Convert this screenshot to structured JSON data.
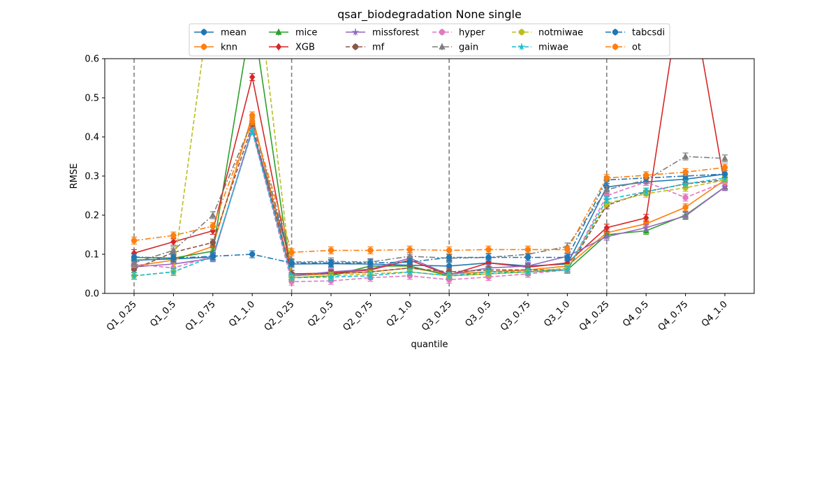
{
  "chart_data": {
    "type": "line",
    "title": "qsar_biodegradation None single",
    "xlabel": "quantile",
    "ylabel": "RMSE",
    "ylim": [
      0,
      0.6
    ],
    "yticks": [
      "0.0",
      "0.1",
      "0.2",
      "0.3",
      "0.4",
      "0.5",
      "0.6"
    ],
    "grid": false,
    "legend_position": "top-center",
    "vlines_at": [
      "Q1_0.25",
      "Q2_0.25",
      "Q3_0.25",
      "Q4_0.25"
    ],
    "categories": [
      "Q1_0.25",
      "Q1_0.5",
      "Q1_0.75",
      "Q1_1.0",
      "Q2_0.25",
      "Q2_0.5",
      "Q2_0.75",
      "Q2_1.0",
      "Q3_0.25",
      "Q3_0.5",
      "Q3_0.75",
      "Q3_1.0",
      "Q4_0.25",
      "Q4_0.5",
      "Q4_0.75",
      "Q4_1.0"
    ],
    "series": [
      {
        "name": "mean",
        "color": "#1f77b4",
        "dash": "solid",
        "marker": "circle",
        "values": [
          0.085,
          0.088,
          0.093,
          0.42,
          0.075,
          0.076,
          0.075,
          0.072,
          0.07,
          0.078,
          0.07,
          0.075,
          0.272,
          0.285,
          0.292,
          0.305
        ]
      },
      {
        "name": "knn",
        "color": "#ff7f0e",
        "dash": "solid",
        "marker": "circle",
        "values": [
          0.07,
          0.085,
          0.12,
          0.455,
          0.045,
          0.05,
          0.055,
          0.065,
          0.05,
          0.055,
          0.06,
          0.07,
          0.155,
          0.178,
          0.22,
          0.29
        ]
      },
      {
        "name": "mice",
        "color": "#2ca02c",
        "dash": "solid",
        "marker": "triangle",
        "values": [
          0.092,
          0.09,
          0.108,
          0.72,
          0.04,
          0.045,
          0.07,
          0.07,
          0.045,
          0.05,
          0.055,
          0.06,
          0.15,
          0.16,
          0.2,
          0.272
        ]
      },
      {
        "name": "XGB",
        "color": "#d62728",
        "dash": "solid",
        "marker": "diamond",
        "values": [
          0.103,
          0.132,
          0.16,
          0.553,
          0.05,
          0.052,
          0.06,
          0.085,
          0.047,
          0.078,
          0.067,
          0.078,
          0.168,
          0.193,
          0.85,
          0.275
        ]
      },
      {
        "name": "missforest",
        "color": "#9467bd",
        "dash": "solid",
        "marker": "star",
        "values": [
          0.068,
          0.075,
          0.09,
          0.42,
          0.045,
          0.055,
          0.062,
          0.09,
          0.048,
          0.065,
          0.07,
          0.095,
          0.145,
          0.168,
          0.198,
          0.272
        ]
      },
      {
        "name": "mf",
        "color": "#8c564b",
        "dash": "dashed",
        "marker": "circle",
        "values": [
          0.062,
          0.105,
          0.13,
          0.43,
          0.05,
          0.05,
          0.055,
          0.065,
          0.055,
          0.06,
          0.06,
          0.06,
          0.225,
          0.26,
          0.28,
          0.29
        ]
      },
      {
        "name": "hyper",
        "color": "#e377c2",
        "dash": "dashed",
        "marker": "circle",
        "values": [
          0.075,
          0.065,
          0.095,
          0.415,
          0.03,
          0.032,
          0.04,
          0.045,
          0.035,
          0.042,
          0.05,
          0.06,
          0.25,
          0.285,
          0.245,
          0.285
        ]
      },
      {
        "name": "gain",
        "color": "#7f7f7f",
        "dash": "dashdot",
        "marker": "triangle",
        "values": [
          0.078,
          0.11,
          0.2,
          0.44,
          0.08,
          0.082,
          0.08,
          0.095,
          0.09,
          0.092,
          0.1,
          0.12,
          0.265,
          0.29,
          0.35,
          0.345
        ]
      },
      {
        "name": "notmiwae",
        "color": "#bcbd22",
        "dash": "dashed",
        "marker": "circle",
        "values": [
          0.045,
          0.055,
          0.8,
          0.9,
          0.04,
          0.045,
          0.05,
          0.055,
          0.045,
          0.05,
          0.055,
          0.065,
          0.23,
          0.255,
          0.27,
          0.29
        ]
      },
      {
        "name": "miwae",
        "color": "#17becf",
        "dash": "dashed",
        "marker": "star",
        "values": [
          0.045,
          0.055,
          0.095,
          0.415,
          0.04,
          0.042,
          0.045,
          0.055,
          0.045,
          0.055,
          0.055,
          0.06,
          0.24,
          0.26,
          0.28,
          0.295
        ]
      },
      {
        "name": "tabcsdi",
        "color": "#1f77b4",
        "dash": "dashdot",
        "marker": "circle",
        "values": [
          0.093,
          0.09,
          0.095,
          0.1,
          0.078,
          0.078,
          0.078,
          0.08,
          0.092,
          0.092,
          0.092,
          0.092,
          0.29,
          0.295,
          0.3,
          0.305
        ]
      },
      {
        "name": "ot",
        "color": "#ff7f0e",
        "dash": "dashdot",
        "marker": "circle",
        "values": [
          0.135,
          0.148,
          0.172,
          0.44,
          0.105,
          0.11,
          0.11,
          0.112,
          0.11,
          0.112,
          0.112,
          0.112,
          0.295,
          0.302,
          0.31,
          0.322
        ]
      }
    ]
  }
}
